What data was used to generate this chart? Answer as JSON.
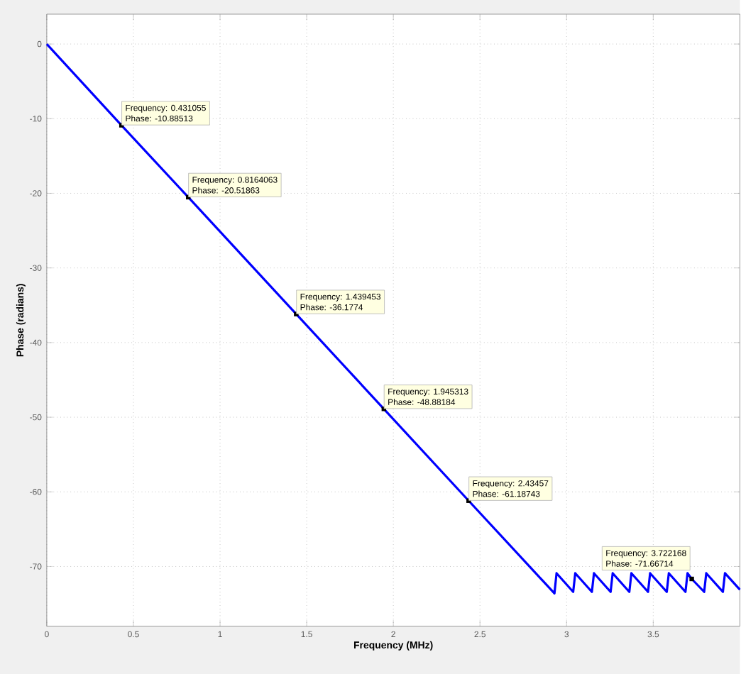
{
  "chart_data": {
    "type": "line",
    "xlabel": "Frequency (MHz)",
    "ylabel": "Phase (radians)",
    "xlim": [
      0,
      4
    ],
    "ylim": [
      -78,
      4
    ],
    "xticks": [
      0,
      0.5,
      1,
      1.5,
      2,
      2.5,
      3,
      3.5
    ],
    "yticks": [
      0,
      -10,
      -20,
      -30,
      -40,
      -50,
      -60,
      -70
    ],
    "grid": true,
    "x": [
      0,
      0.431055,
      0.8164063,
      1.439453,
      1.945313,
      2.43457,
      2.93,
      2.942,
      3.038,
      3.05,
      3.146,
      3.158,
      3.254,
      3.266,
      3.362,
      3.374,
      3.47,
      3.482,
      3.578,
      3.59,
      3.686,
      3.698,
      3.722168,
      3.794,
      3.806,
      3.902,
      3.914,
      4.0
    ],
    "series": [
      {
        "color": "#0000ff",
        "values": [
          0,
          -10.88513,
          -20.51863,
          -36.1774,
          -48.88184,
          -61.18743,
          -73.6,
          -70.9,
          -73.4,
          -70.9,
          -73.4,
          -70.9,
          -73.4,
          -70.9,
          -73.4,
          -70.9,
          -73.4,
          -70.9,
          -73.4,
          -70.9,
          -73.4,
          -70.9,
          -71.66714,
          -73.4,
          -70.9,
          -73.4,
          -70.9,
          -73.1
        ]
      }
    ],
    "annotations": [
      {
        "text": "Frequency: 0.431055",
        "x": 0.431055,
        "y": -10.88513
      },
      {
        "text": "Phase: -10.88513",
        "x": 0.431055,
        "y": -10.88513
      },
      {
        "text": "Frequency: 0.8164063",
        "x": 0.8164063,
        "y": -20.51863
      },
      {
        "text": "Phase: -20.51863",
        "x": 0.8164063,
        "y": -20.51863
      },
      {
        "text": "Frequency: 1.439453",
        "x": 1.439453,
        "y": -36.1774
      },
      {
        "text": "Phase: -36.1774",
        "x": 1.439453,
        "y": -36.1774
      },
      {
        "text": "Frequency: 1.945313",
        "x": 1.945313,
        "y": -48.88184
      },
      {
        "text": "Phase: -48.88184",
        "x": 1.945313,
        "y": -48.88184
      },
      {
        "text": "Frequency: 2.43457",
        "x": 2.43457,
        "y": -61.18743
      },
      {
        "text": "Phase: -61.18743",
        "x": 2.43457,
        "y": -61.18743
      },
      {
        "text": "Frequency: 3.722168",
        "x": 3.722168,
        "y": -71.66714
      },
      {
        "text": "Phase: -71.66714",
        "x": 3.722168,
        "y": -71.66714
      }
    ]
  }
}
